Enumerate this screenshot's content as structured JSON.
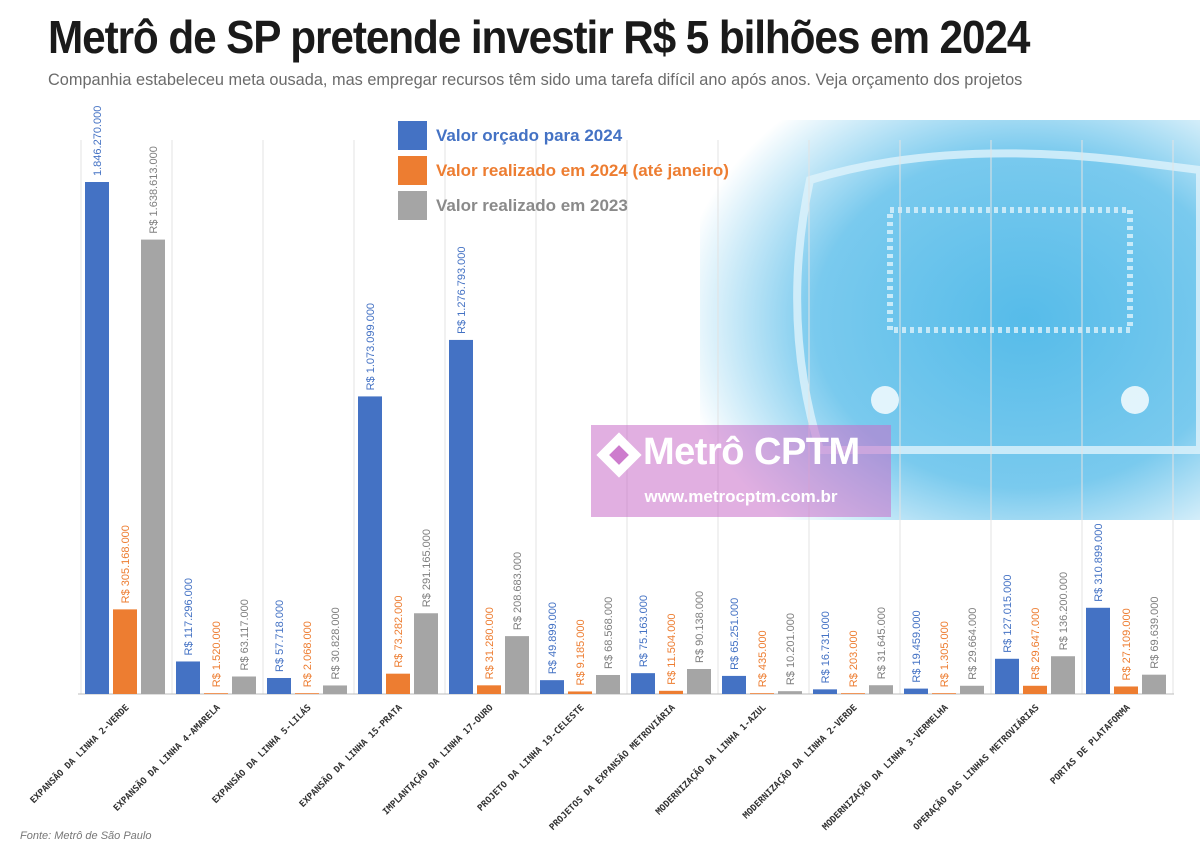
{
  "title": "Metrô de SP pretende investir R$ 5 bilhões em 2024",
  "subtitle": "Companhia estabeleceu meta ousada, mas empregar recursos têm sido uma tarefa difícil ano após anos. Veja orçamento dos projetos",
  "source": "Fonte: Metrô de São Paulo",
  "watermark": {
    "brand": "Metrô CPTM",
    "url": "www.metrocptm.com.br"
  },
  "colors": {
    "budget_2024": "#4472c4",
    "realized_2024": "#ed7d31",
    "realized_2023": "#a5a5a5",
    "background_art": "#4db8e8",
    "watermark": "#c86ec8"
  },
  "chart_data": {
    "type": "bar",
    "title": "Metrô de SP pretende investir R$ 5 bilhões em 2024",
    "xlabel": "",
    "ylabel": "",
    "grid": true,
    "legend_position": "top-center",
    "ylim": [
      0,
      1846270000
    ],
    "categories": [
      "EXPANSÃO DA LINHA 2-VERDE",
      "EXPANSÃO DA LINHA 4-AMARELA",
      "EXPANSÃO DA LINHA 5-LILÁS",
      "EXPANSÃO DA LINHA 15-PRATA",
      "IMPLANTAÇÃO DA LINHA 17-OURO",
      "PROJETO DA LINHA 19-CELESTE",
      "PROJETOS DA EXPANSÃO METROVIÁRIA",
      "MODERNIZAÇÃO DA LINHA 1-AZUL",
      "MODERNIZAÇÃO DA LINHA 2-VERDE",
      "MODERNIZAÇÃO DA LINHA 3-VERMELHA",
      "OPERAÇÃO DAS LINHAS METROVIÁRIAS",
      "PORTAS DE PLATAFORMA"
    ],
    "series": [
      {
        "name": "Valor orçado para 2024",
        "color": "#4472c4",
        "values": [
          1846270000,
          117296000,
          57718000,
          1073099000,
          1276793000,
          49899000,
          75163000,
          65251000,
          16731000,
          19459000,
          127015000,
          310899000
        ],
        "labels": [
          "1.846.270.000",
          "R$ 117.296.000",
          "R$ 57.718.000",
          "R$ 1.073.099.000",
          "R$ 1.276.793.000",
          "R$ 49.899.000",
          "R$ 75.163.000",
          "R$ 65.251.000",
          "R$ 16.731.000",
          "R$ 19.459.000",
          "R$ 127.015.000",
          "R$ 310.899.000"
        ]
      },
      {
        "name": "Valor realizado em 2024 (até janeiro)",
        "color": "#ed7d31",
        "values": [
          305168000,
          1520000,
          2068000,
          73282000,
          31280000,
          9185000,
          11504000,
          435000,
          203000,
          1305000,
          29647000,
          27109000
        ],
        "labels": [
          "R$ 305.168.000",
          "R$ 1.520.000",
          "R$ 2.068.000",
          "R$ 73.282.000",
          "R$ 31.280.000",
          "R$ 9.185.000",
          "R$ 11.504.000",
          "R$ 435.000",
          "R$ 203.000",
          "R$ 1.305.000",
          "R$ 29.647.000",
          "R$ 27.109.000"
        ]
      },
      {
        "name": "Valor realizado em 2023",
        "color": "#a5a5a5",
        "values": [
          1638613000,
          63117000,
          30828000,
          291165000,
          208683000,
          68568000,
          90138000,
          10201000,
          31645000,
          29664000,
          136200000,
          69639000
        ],
        "labels": [
          "R$ 1.638.613.000",
          "R$ 63.117.000",
          "R$ 30.828.000",
          "R$ 291.165.000",
          "R$ 208.683.000",
          "R$ 68.568.000",
          "R$ 90.138.000",
          "R$ 10.201.000",
          "R$ 31.645.000",
          "R$ 29.664.000",
          "R$ 136.200.000",
          "R$ 69.639.000"
        ]
      }
    ]
  }
}
